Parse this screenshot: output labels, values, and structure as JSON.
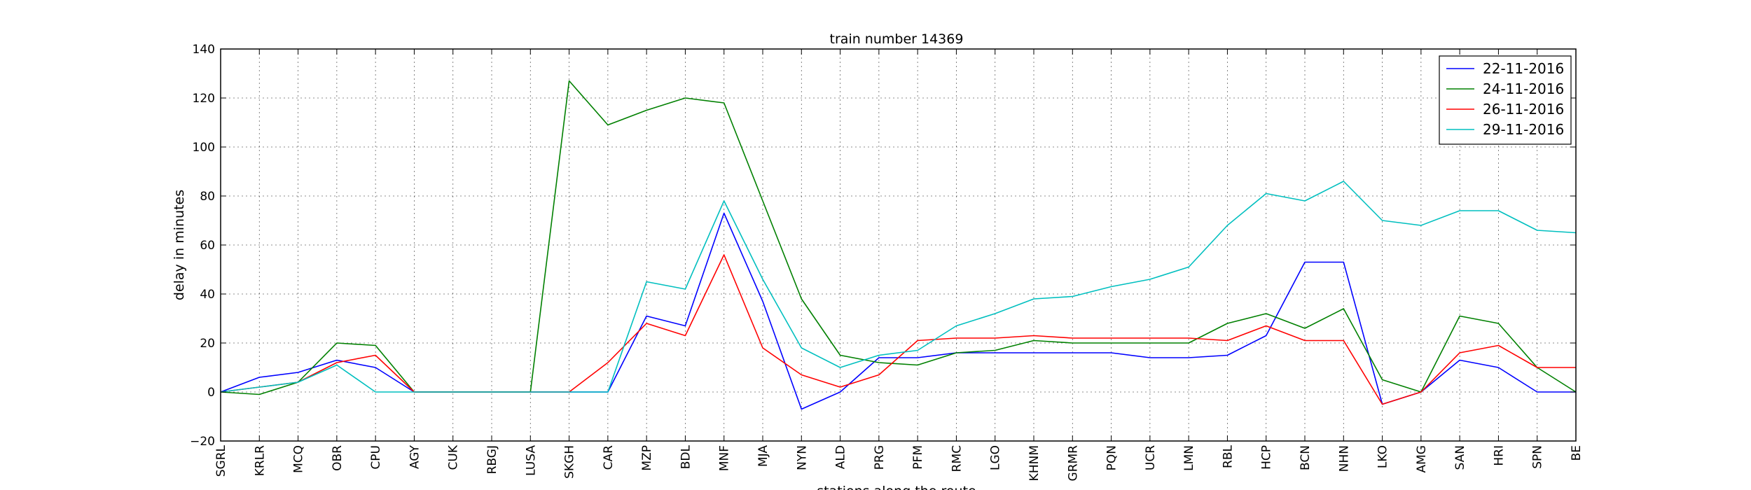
{
  "chart_data": {
    "type": "line",
    "title": "train number 14369",
    "xlabel": "stations along the route",
    "ylabel": "delay in minutes",
    "ylim": [
      -20,
      140
    ],
    "yticks": [
      -20,
      0,
      20,
      40,
      60,
      80,
      100,
      120,
      140
    ],
    "grid": true,
    "legend_position": "top-right",
    "categories": [
      "SGRL",
      "KRLR",
      "MCQ",
      "OBR",
      "CPU",
      "AGY",
      "CUK",
      "RBGJ",
      "LUSA",
      "SKGH",
      "CAR",
      "MZP",
      "BDL",
      "MNF",
      "MJA",
      "NYN",
      "ALD",
      "PRG",
      "PFM",
      "RMC",
      "LGO",
      "KHNM",
      "GRMR",
      "PQN",
      "UCR",
      "LMN",
      "RBL",
      "HCP",
      "BCN",
      "NHN",
      "LKO",
      "AMG",
      "SAN",
      "HRI",
      "SPN",
      "BE"
    ],
    "series": [
      {
        "name": "22-11-2016",
        "color": "#0000ff",
        "values": [
          0,
          6,
          8,
          13,
          10,
          0,
          0,
          0,
          0,
          0,
          0,
          31,
          27,
          73,
          37,
          -7,
          0,
          14,
          14,
          16,
          16,
          16,
          16,
          16,
          14,
          14,
          15,
          23,
          53,
          53,
          -5,
          0,
          13,
          10,
          0,
          0
        ]
      },
      {
        "name": "24-11-2016",
        "color": "#008000",
        "values": [
          0,
          -1,
          4,
          20,
          19,
          0,
          0,
          0,
          0,
          127,
          109,
          115,
          120,
          118,
          78,
          38,
          15,
          12,
          11,
          16,
          17,
          21,
          20,
          20,
          20,
          20,
          28,
          32,
          26,
          34,
          5,
          0,
          31,
          28,
          10,
          0
        ]
      },
      {
        "name": "26-11-2016",
        "color": "#ff0000",
        "values": [
          0,
          2,
          4,
          12,
          15,
          0,
          0,
          0,
          0,
          0,
          12,
          28,
          23,
          56,
          18,
          7,
          2,
          7,
          21,
          22,
          22,
          23,
          22,
          22,
          22,
          22,
          21,
          27,
          21,
          21,
          -5,
          0,
          16,
          19,
          10,
          10
        ]
      },
      {
        "name": "29-11-2016",
        "color": "#00bfbf",
        "values": [
          0,
          2,
          4,
          11,
          0,
          0,
          0,
          0,
          0,
          0,
          0,
          45,
          42,
          78,
          46,
          18,
          10,
          15,
          17,
          27,
          32,
          38,
          39,
          43,
          46,
          51,
          68,
          81,
          78,
          86,
          70,
          68,
          74,
          74,
          66,
          65
        ]
      }
    ]
  }
}
